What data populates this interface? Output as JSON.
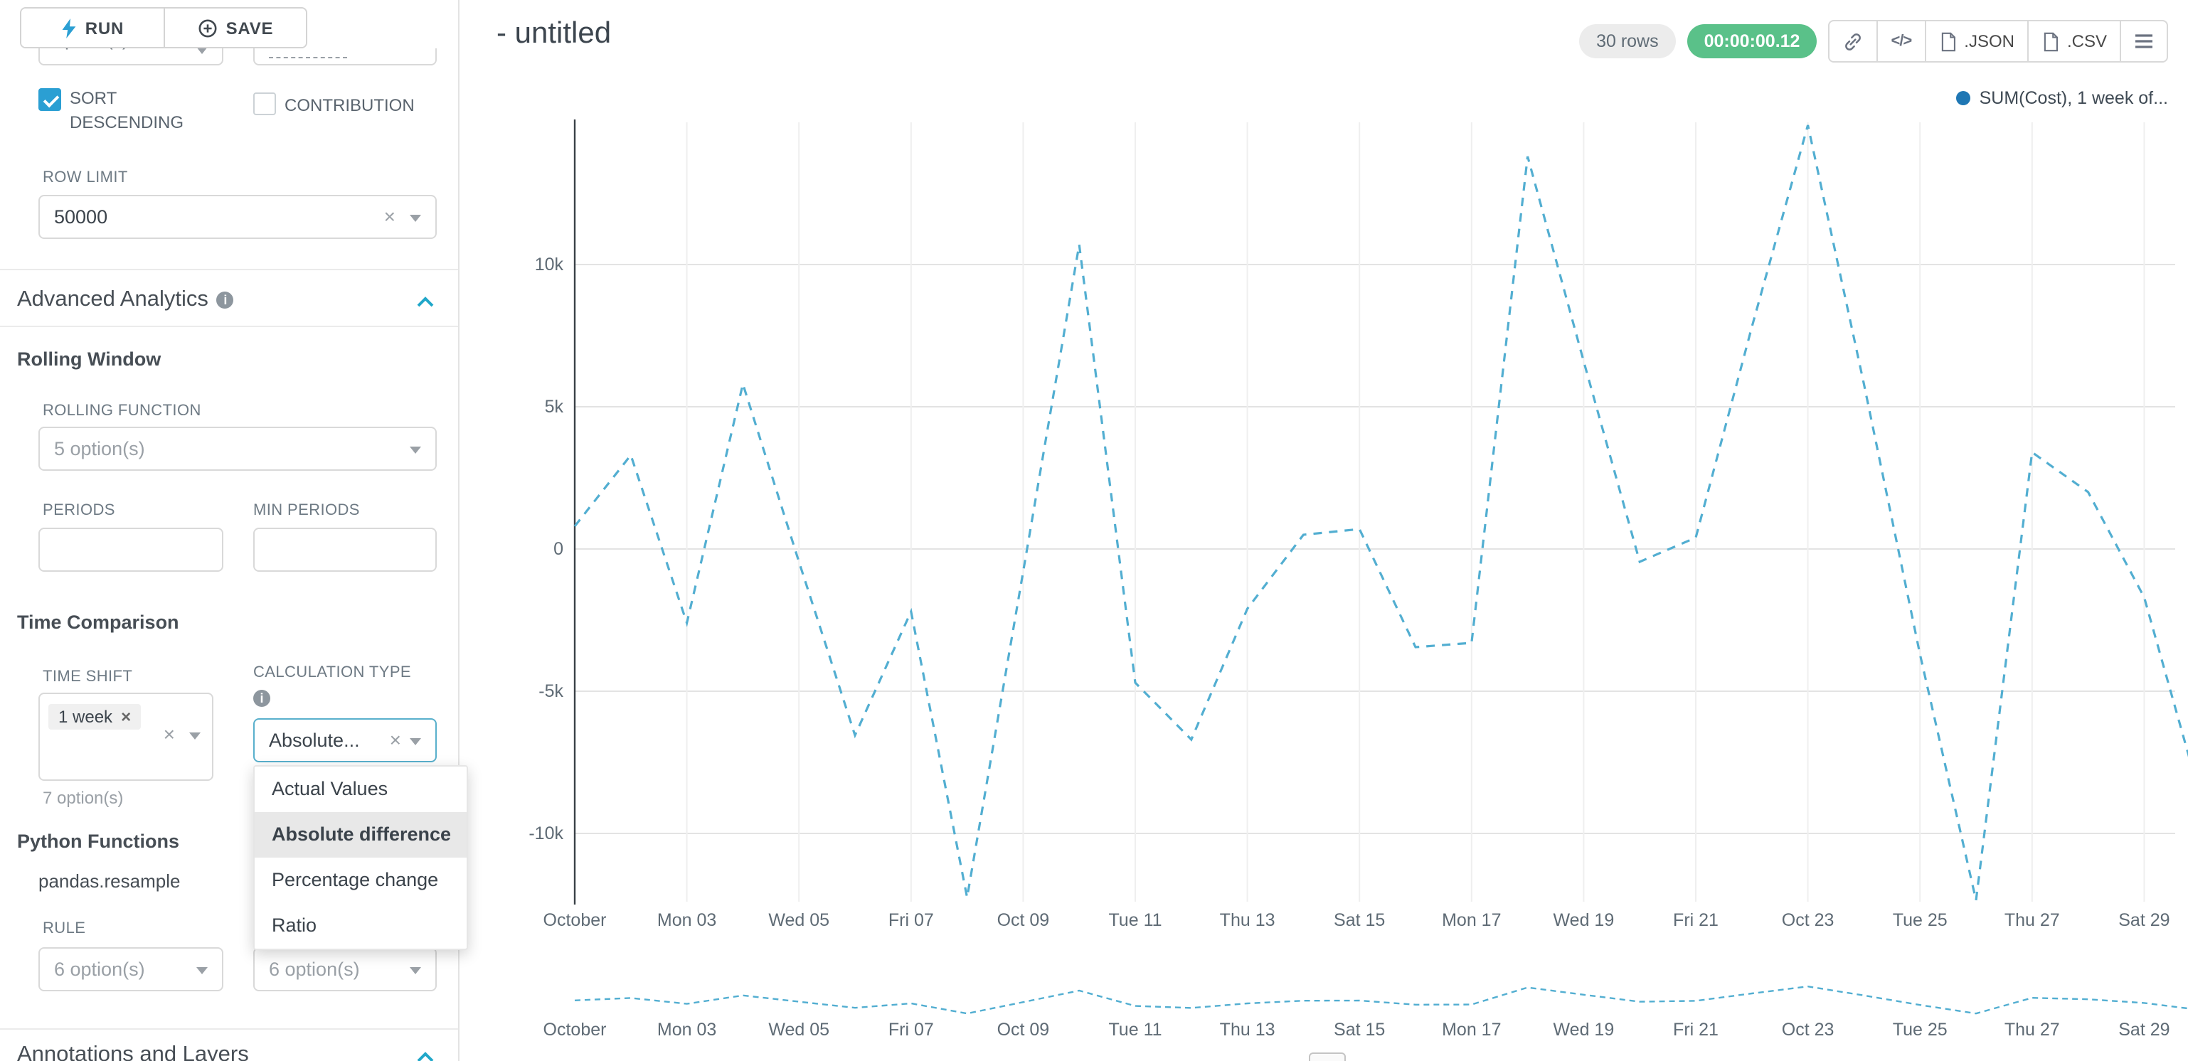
{
  "app": {
    "accent": "#20a7c9",
    "success": "#5ac189"
  },
  "toolbar": {
    "run_label": "RUN",
    "save_label": "SAVE"
  },
  "sidebar": {
    "truncated_left": "option(s)",
    "sort_descending": {
      "label": "SORT DESCENDING",
      "checked": true
    },
    "contribution": {
      "label": "CONTRIBUTION",
      "checked": false
    },
    "row_limit": {
      "label": "ROW LIMIT",
      "value": "50000"
    },
    "advanced_analytics": {
      "title": "Advanced Analytics"
    },
    "rolling_window": {
      "title": "Rolling Window",
      "rolling_function_label": "ROLLING FUNCTION",
      "rolling_function_placeholder": "5 option(s)",
      "periods_label": "PERIODS",
      "min_periods_label": "MIN PERIODS"
    },
    "time_comparison": {
      "title": "Time Comparison",
      "time_shift_label": "TIME SHIFT",
      "time_shift_chip": "1 week",
      "time_shift_options": "7 option(s)",
      "calculation_type_label": "CALCULATION TYPE",
      "calculation_type_value": "Absolute...",
      "dropdown_options": [
        "Actual Values",
        "Absolute difference",
        "Percentage change",
        "Ratio"
      ],
      "dropdown_selected": "Absolute difference"
    },
    "python_functions": {
      "title": "Python Functions",
      "function_name": "pandas.resample",
      "rule_label": "RULE",
      "rule_placeholder": "6 option(s)",
      "method_placeholder": "6 option(s)"
    },
    "annotations": {
      "title": "Annotations and Layers"
    }
  },
  "header": {
    "title": "- untitled",
    "rows_badge": "30 rows",
    "timer": "00:00:00.12",
    "code_label": "</>",
    "json_label": ".JSON",
    "csv_label": ".CSV"
  },
  "legend": {
    "label": "SUM(Cost), 1 week of..."
  },
  "chart_data": {
    "type": "line",
    "title": "",
    "dashed": true,
    "line_color": "#52aed1",
    "dot_color": "#1f77b4",
    "x_ticks": [
      "October",
      "Mon 03",
      "Wed 05",
      "Fri 07",
      "Oct 09",
      "Tue 11",
      "Thu 13",
      "Sat 15",
      "Mon 17",
      "Wed 19",
      "Fri 21",
      "Oct 23",
      "Tue 25",
      "Thu 27",
      "Sat 29"
    ],
    "y_ticks": [
      "10k",
      "5k",
      "0",
      "-5k",
      "-10k"
    ],
    "y_tick_values": [
      10000,
      5000,
      0,
      -5000,
      -10000
    ],
    "ylim": [
      -12500,
      15000
    ],
    "legend_position": "top-right",
    "grid": true,
    "series": [
      {
        "name": "SUM(Cost), 1 week offset",
        "dates": [
          "Oct 01",
          "Oct 02",
          "Oct 03",
          "Oct 04",
          "Oct 05",
          "Oct 06",
          "Oct 07",
          "Oct 08",
          "Oct 09",
          "Oct 10",
          "Oct 11",
          "Oct 12",
          "Oct 13",
          "Oct 14",
          "Oct 15",
          "Oct 16",
          "Oct 17",
          "Oct 18",
          "Oct 19",
          "Oct 20",
          "Oct 21",
          "Oct 22",
          "Oct 23",
          "Oct 24",
          "Oct 25",
          "Oct 26",
          "Oct 27",
          "Oct 28",
          "Oct 29",
          "Oct 30"
        ],
        "values": [
          800,
          3300,
          -2600,
          5800,
          -450,
          -6550,
          -2200,
          -12250,
          -800,
          10700,
          -4700,
          -6700,
          -2100,
          500,
          700,
          -3450,
          -3300,
          13800,
          6600,
          -450,
          400,
          7800,
          14900,
          5800,
          -3700,
          -12350,
          3400,
          2000,
          -1700,
          -8700
        ]
      }
    ]
  }
}
